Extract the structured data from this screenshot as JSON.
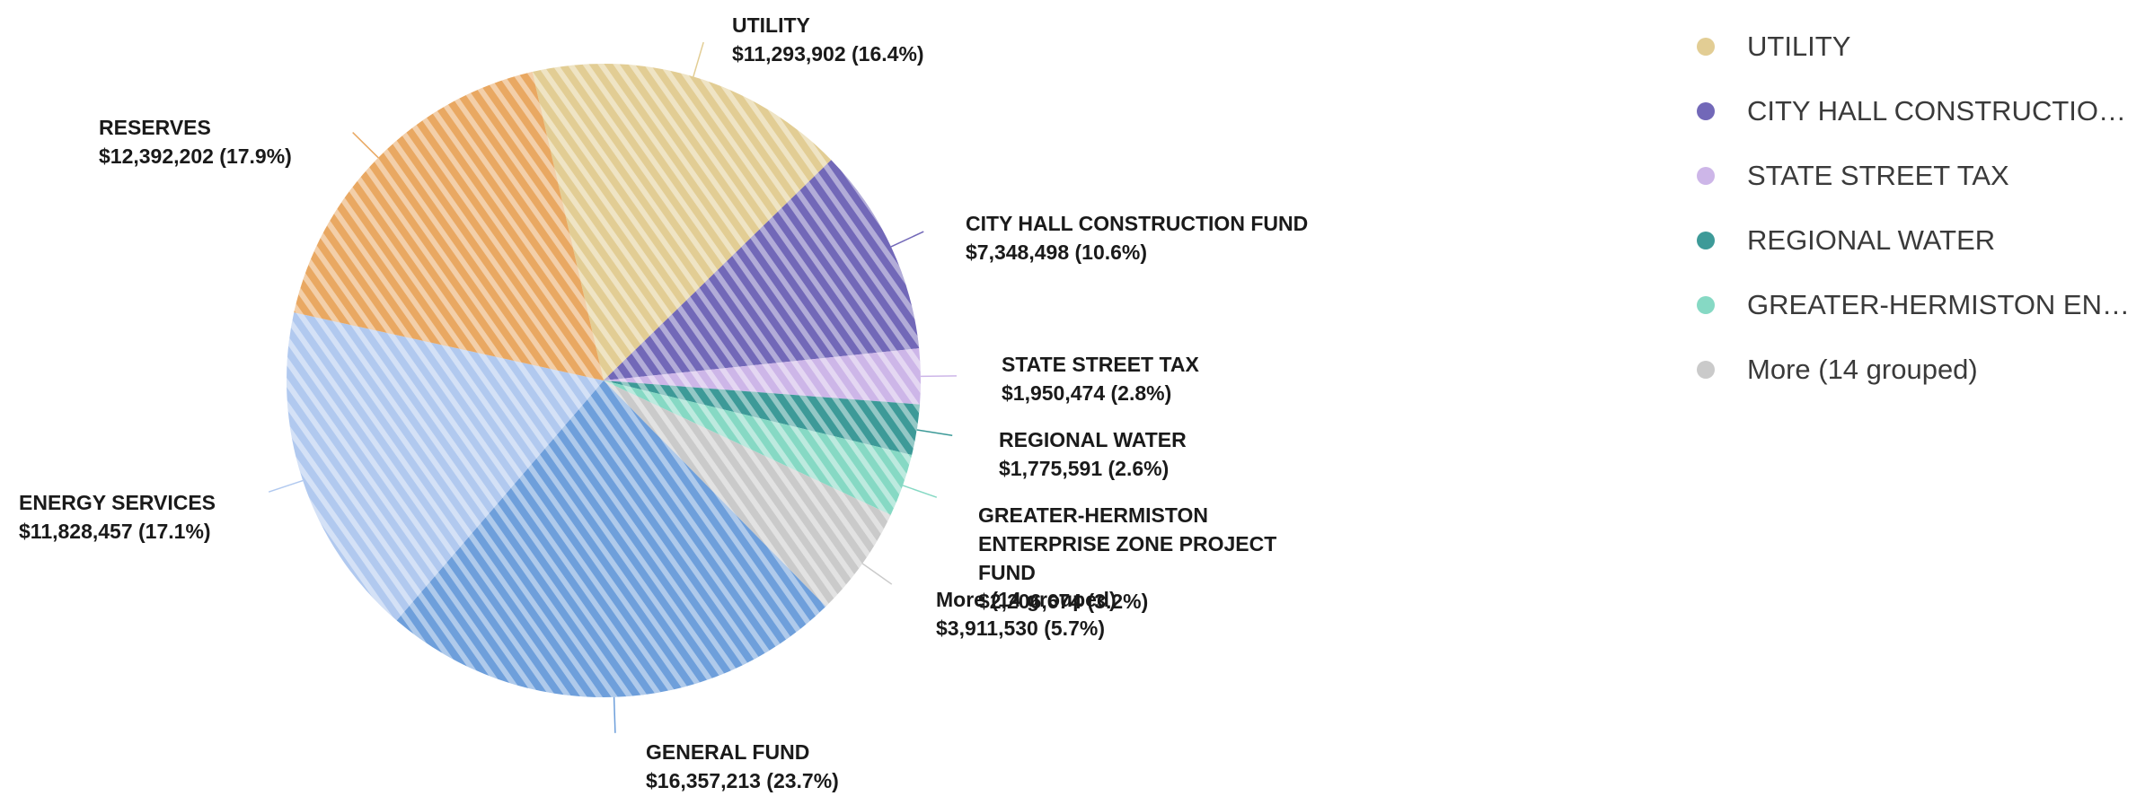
{
  "chart_data": {
    "type": "pie",
    "categories": [
      "UTILITY",
      "CITY HALL CONSTRUCTION FUND",
      "STATE STREET TAX",
      "REGIONAL WATER",
      "GREATER-HERMISTON ENTERPRISE ZONE PROJECT FUND",
      "More (14 grouped)",
      "GENERAL FUND",
      "ENERGY SERVICES",
      "RESERVES"
    ],
    "values": [
      11293902,
      7348498,
      1950474,
      1775591,
      2206674,
      3911530,
      16357213,
      11828457,
      12392202
    ],
    "value_labels": [
      "$11,293,902 (16.4%)",
      "$7,348,498 (10.6%)",
      "$1,950,474 (2.8%)",
      "$1,775,591 (2.6%)",
      "$2,206,674 (3.2%)",
      "$3,911,530 (5.7%)",
      "$16,357,213 (23.7%)",
      "$11,828,457 (17.1%)",
      "$12,392,202 (17.9%)"
    ],
    "colors": [
      "#e2cd94",
      "#7268b8",
      "#cdb6e8",
      "#3d9a98",
      "#86d9c4",
      "#cacaca",
      "#6e9fdb",
      "#b1c9ef",
      "#e9a862"
    ],
    "legend": [
      "UTILITY",
      "CITY HALL CONSTRUCTIO…",
      "STATE STREET TAX",
      "REGIONAL WATER",
      "GREATER-HERMISTON EN…",
      "More (14 grouped)"
    ]
  }
}
